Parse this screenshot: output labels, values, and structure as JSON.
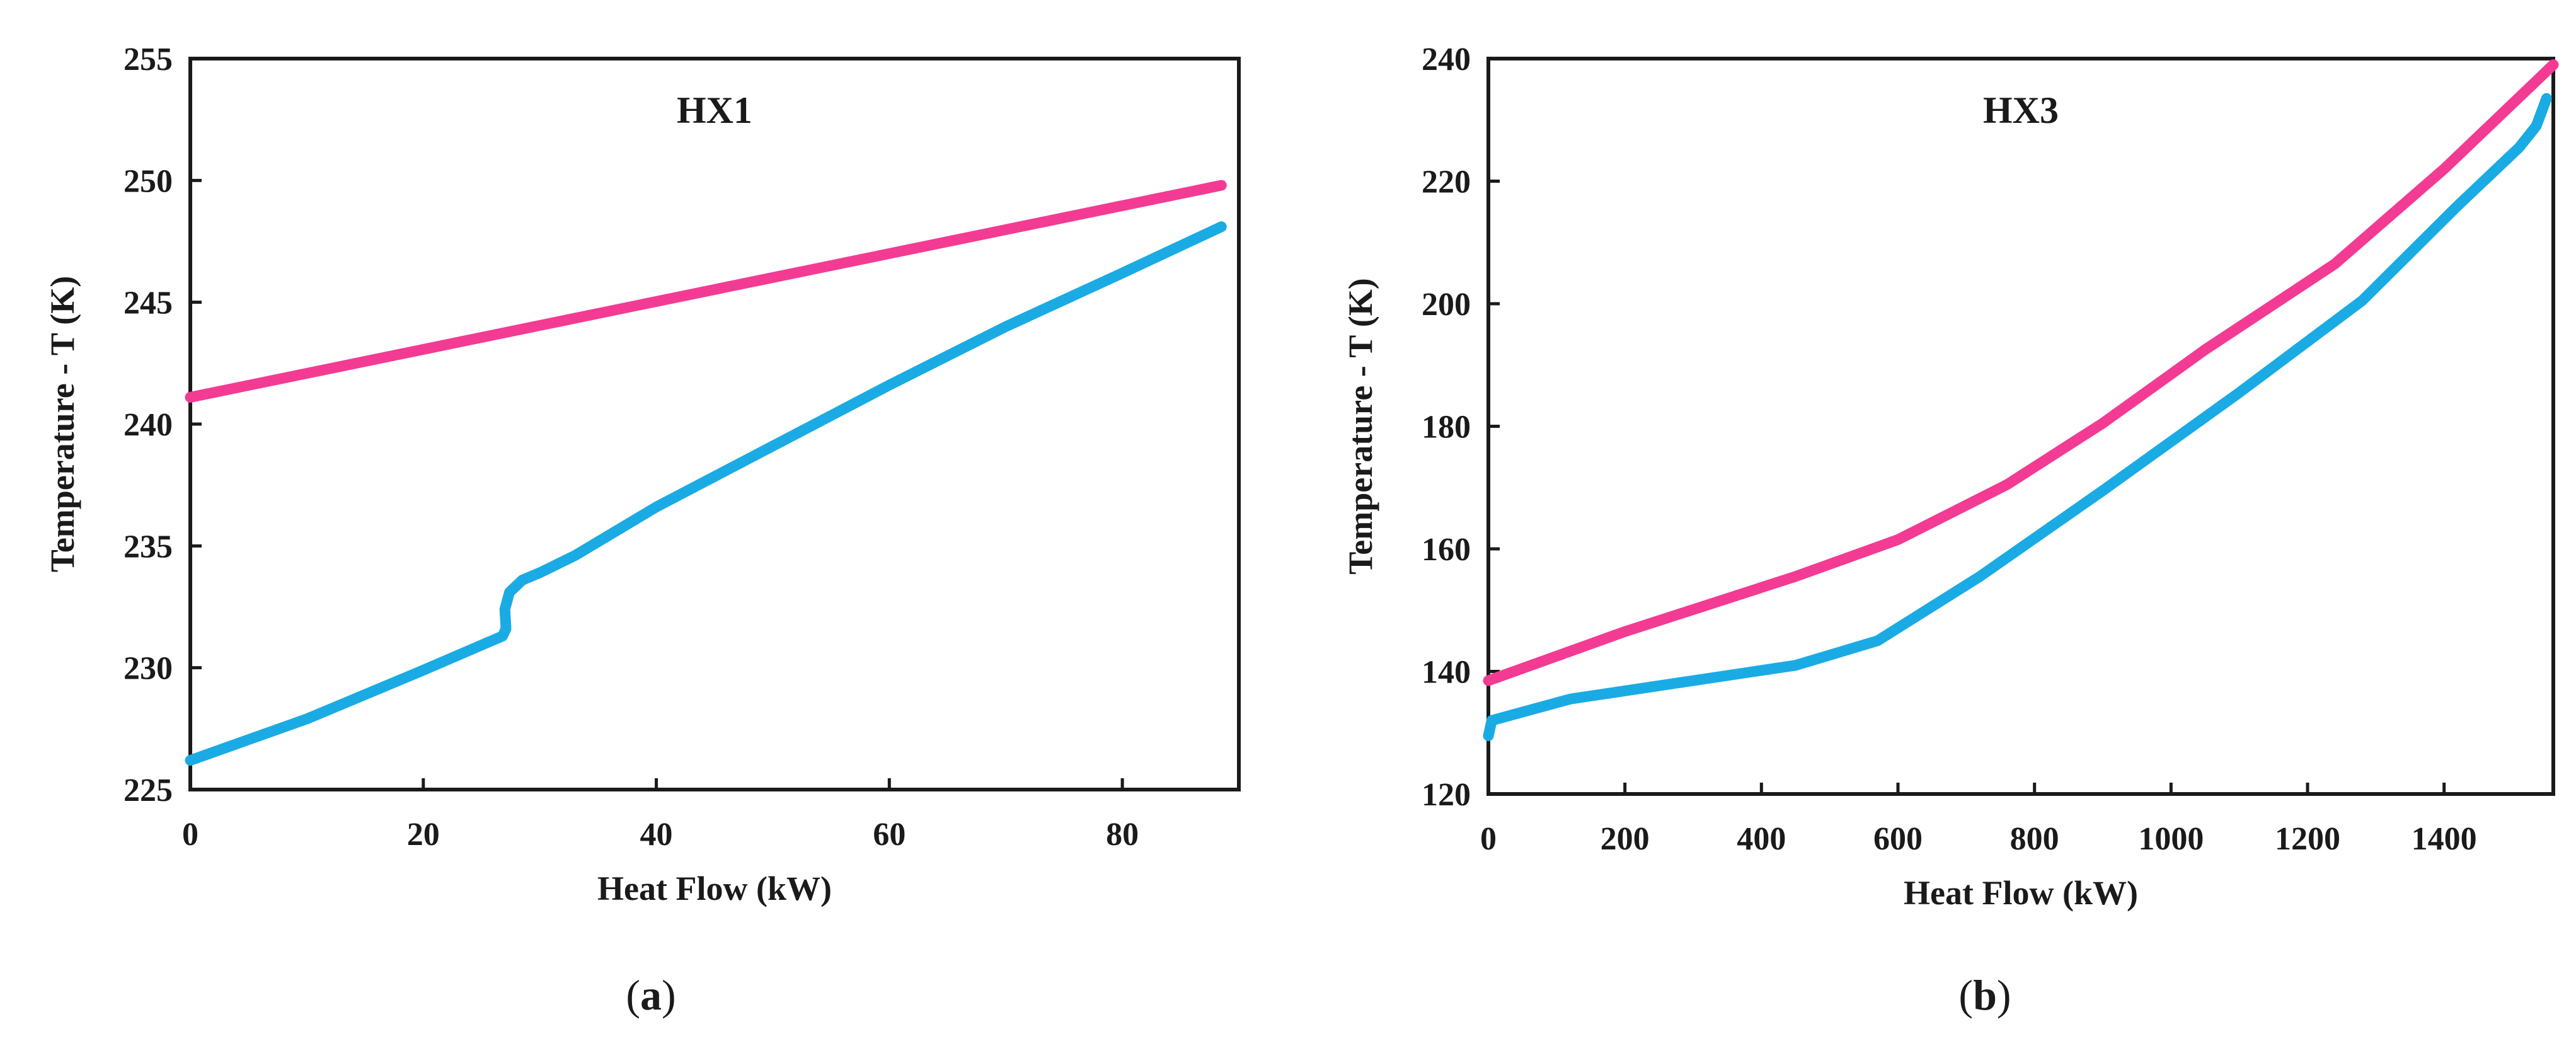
{
  "chart_data": [
    {
      "type": "line",
      "title": "HX1",
      "caption_letter": "a",
      "xlabel": "Heat Flow (kW)",
      "ylabel": "Temperature - T (K)",
      "xlim": [
        0,
        90
      ],
      "ylim": [
        225,
        255
      ],
      "xticks": [
        0,
        20,
        40,
        60,
        80
      ],
      "yticks": [
        225,
        230,
        235,
        240,
        245,
        250,
        255
      ],
      "grid": false,
      "legend": "none",
      "series": [
        {
          "color": "#f33b94",
          "x": [
            0,
            88.5
          ],
          "y": [
            241.1,
            249.8
          ]
        },
        {
          "color": "#1aabe4",
          "x": [
            0,
            10,
            20,
            26.8,
            27.1,
            27.0,
            27.4,
            28.5,
            30,
            33,
            40,
            52,
            60,
            70,
            80,
            88.5
          ],
          "y": [
            226.2,
            227.9,
            229.9,
            231.3,
            231.6,
            232.4,
            233.1,
            233.6,
            233.9,
            234.6,
            236.6,
            239.6,
            241.6,
            244.0,
            246.2,
            248.1
          ]
        }
      ]
    },
    {
      "type": "line",
      "title": "HX3",
      "caption_letter": "b",
      "xlabel": "Heat Flow (kW)",
      "ylabel": "Temperature - T (K)",
      "xlim": [
        0,
        1560
      ],
      "ylim": [
        120,
        240
      ],
      "xticks": [
        0,
        200,
        400,
        600,
        800,
        1000,
        1200,
        1400
      ],
      "yticks": [
        120,
        140,
        160,
        180,
        200,
        220,
        240
      ],
      "grid": false,
      "legend": "none",
      "series": [
        {
          "color": "#f33b94",
          "x": [
            0,
            200,
            450,
            600,
            760,
            900,
            1050,
            1240,
            1400,
            1560
          ],
          "y": [
            138.5,
            146.5,
            155.5,
            161.5,
            170.5,
            180.5,
            192.5,
            206.5,
            222,
            239
          ]
        },
        {
          "color": "#1aabe4",
          "x": [
            0,
            5,
            120,
            300,
            450,
            570,
            720,
            900,
            1100,
            1280,
            1420,
            1510,
            1535,
            1545,
            1550
          ],
          "y": [
            129.5,
            132,
            135.5,
            138.5,
            141,
            145,
            155.5,
            169.5,
            185.5,
            200.5,
            216,
            225.5,
            229,
            232,
            233.5
          ]
        }
      ]
    }
  ]
}
